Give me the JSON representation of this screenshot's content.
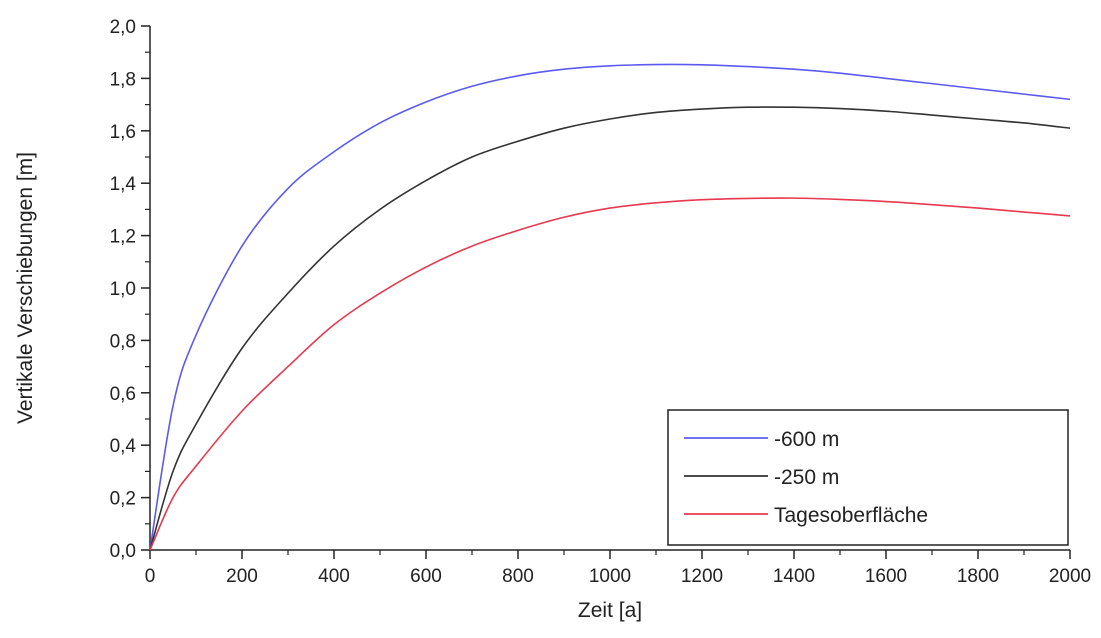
{
  "chart_data": {
    "type": "line",
    "title": "",
    "xlabel": "Zeit [a]",
    "ylabel": "Vertikale Verschiebungen [m]",
    "xlim": [
      0,
      2000
    ],
    "ylim": [
      0,
      2.0
    ],
    "grid": false,
    "legend_position": "bottom-right",
    "x_ticks": [
      "0",
      "200",
      "400",
      "600",
      "800",
      "1000",
      "1200",
      "1400",
      "1600",
      "1800",
      "2000"
    ],
    "y_ticks": [
      "0,0",
      "0,2",
      "0,4",
      "0,6",
      "0,8",
      "1,0",
      "1,2",
      "1,4",
      "1,6",
      "1,8",
      "2,0"
    ],
    "x": [
      0,
      50,
      100,
      200,
      300,
      400,
      500,
      600,
      700,
      800,
      900,
      1000,
      1100,
      1200,
      1300,
      1400,
      1500,
      1600,
      1700,
      1800,
      1900,
      2000
    ],
    "series": [
      {
        "name": "-600 m",
        "color": "#5b5bf0",
        "values": [
          0,
          0.55,
          0.82,
          1.16,
          1.38,
          1.52,
          1.63,
          1.71,
          1.77,
          1.81,
          1.835,
          1.848,
          1.853,
          1.852,
          1.845,
          1.835,
          1.82,
          1.8,
          1.78,
          1.76,
          1.74,
          1.72
        ]
      },
      {
        "name": "-250 m",
        "color": "#333333",
        "values": [
          0,
          0.3,
          0.48,
          0.77,
          0.98,
          1.16,
          1.3,
          1.41,
          1.5,
          1.56,
          1.61,
          1.645,
          1.67,
          1.683,
          1.69,
          1.69,
          1.685,
          1.675,
          1.66,
          1.645,
          1.63,
          1.61
        ]
      },
      {
        "name": "Tagesoberfläche",
        "color": "#e6394f",
        "values": [
          0,
          0.2,
          0.32,
          0.53,
          0.7,
          0.86,
          0.98,
          1.08,
          1.16,
          1.22,
          1.27,
          1.305,
          1.325,
          1.337,
          1.342,
          1.343,
          1.338,
          1.33,
          1.318,
          1.305,
          1.29,
          1.275
        ]
      }
    ]
  }
}
